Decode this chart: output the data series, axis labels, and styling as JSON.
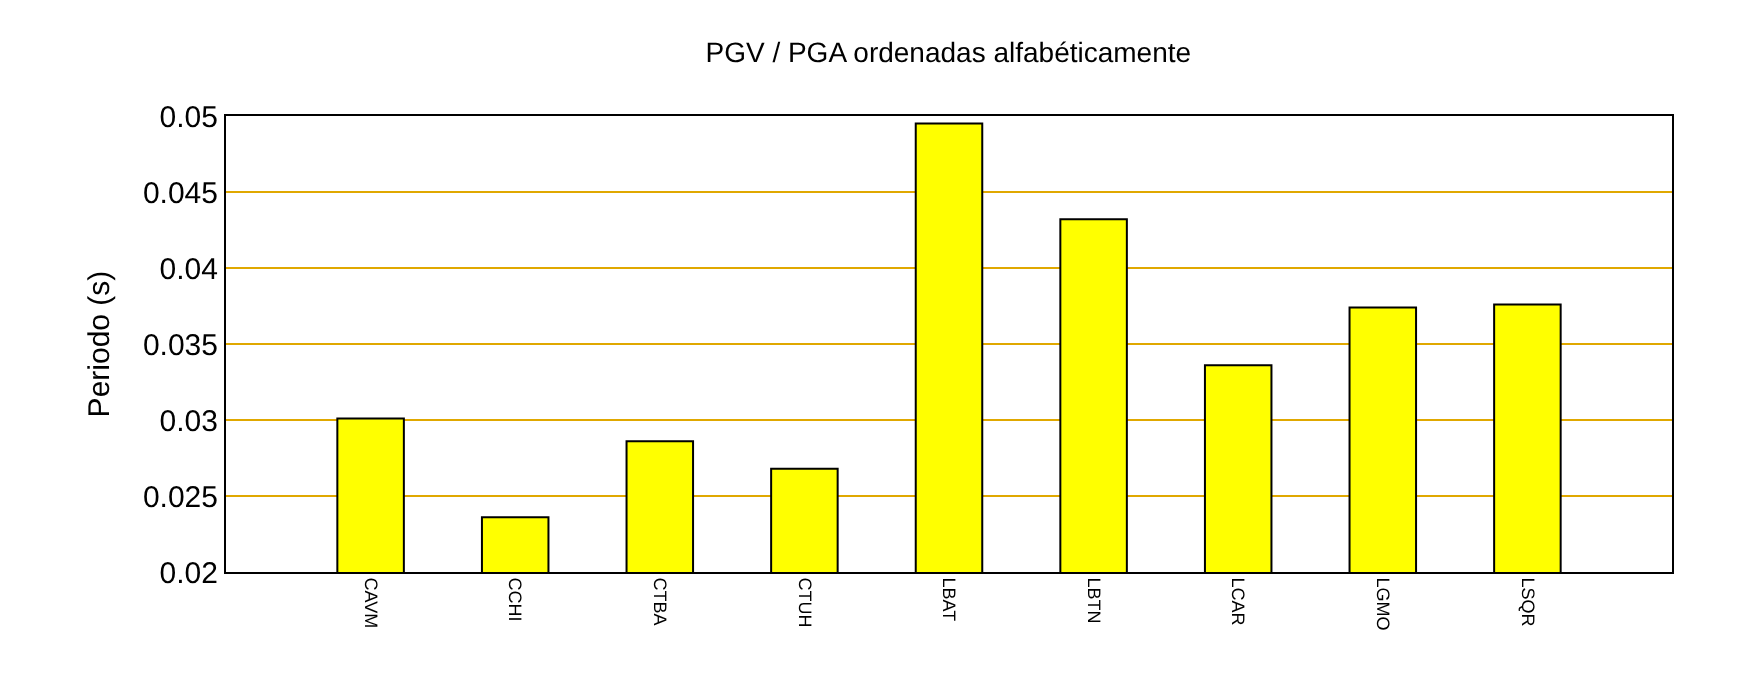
{
  "chart_data": {
    "type": "bar",
    "title": "PGV / PGA ordenadas alfabéticamente",
    "ylabel": "Periodo (s)",
    "categories": [
      "CAVM",
      "CCHI",
      "CTBA",
      "CTUH",
      "LBAT",
      "LBTN",
      "LCAR",
      "LGMO",
      "LSQR"
    ],
    "values": [
      0.0301,
      0.0236,
      0.0286,
      0.0268,
      0.0495,
      0.0432,
      0.0336,
      0.0374,
      0.0376
    ],
    "color": "#ffff00",
    "ylim": [
      0.02,
      0.05
    ],
    "yticks": [
      0.02,
      0.025,
      0.03,
      0.035,
      0.04,
      0.045,
      0.05
    ],
    "grid": "y"
  }
}
